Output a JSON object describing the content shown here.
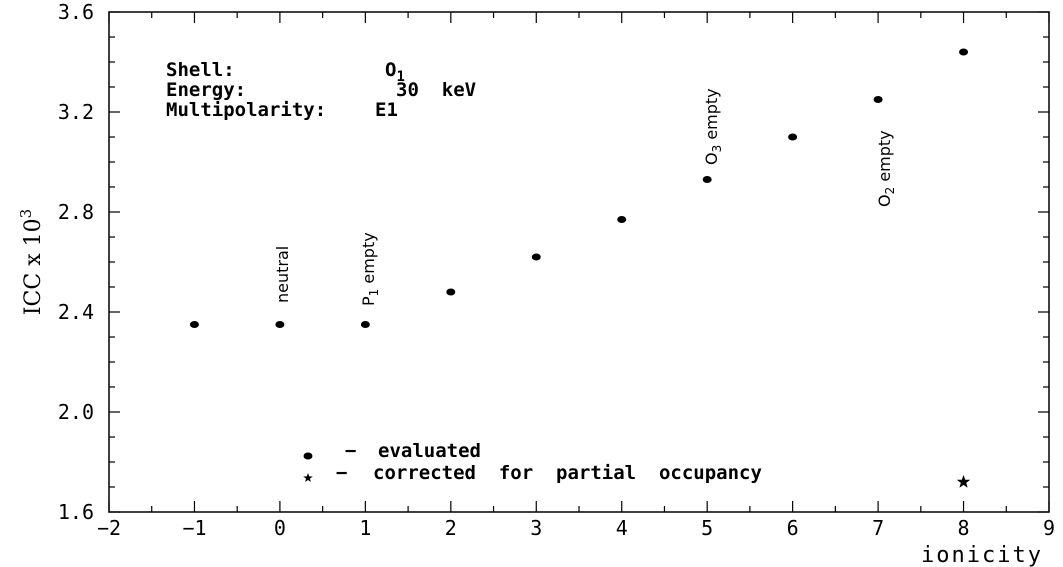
{
  "chart_data": {
    "type": "scatter",
    "xlabel": "ionicity",
    "ylabel_main": "ICC x 10",
    "ylabel_exp": "3",
    "xlim": [
      -2,
      9
    ],
    "ylim": [
      1.6,
      3.6
    ],
    "x_ticks": [
      "−2",
      "−1",
      "0",
      "1",
      "2",
      "3",
      "4",
      "5",
      "6",
      "7",
      "8",
      "9"
    ],
    "y_ticks": [
      "1.6",
      "2.0",
      "2.4",
      "2.8",
      "3.2",
      "3.6"
    ],
    "series": [
      {
        "name": "evaluated",
        "marker": "dot",
        "x": [
          -1,
          0,
          1,
          2,
          3,
          4,
          5,
          6,
          7,
          8
        ],
        "y": [
          2.35,
          2.35,
          2.35,
          2.48,
          2.62,
          2.77,
          2.93,
          3.1,
          3.25,
          3.44
        ]
      },
      {
        "name": "corrected for partial occupancy",
        "marker": "star",
        "x": [
          8
        ],
        "y": [
          1.72
        ]
      }
    ],
    "info": {
      "shell_label": "Shell:",
      "shell_value": "O",
      "shell_sub": "1",
      "energy_label": "Energy:",
      "energy_value": "30  keV",
      "multipolarity_label": "Multipolarity:",
      "multipolarity_value": "E1"
    },
    "annotations": {
      "neutral": "neutral",
      "p1_main": "P",
      "p1_sub": "1",
      "p1_rest": " empty",
      "o3_main": "O",
      "o3_sub": "3",
      "o3_rest": " empty",
      "o2_main": "O",
      "o2_sub": "2",
      "o2_rest": " empty"
    },
    "legend": {
      "dash": "−",
      "evaluated": "evaluated",
      "corrected": "corrected  for  partial  occupancy"
    }
  }
}
